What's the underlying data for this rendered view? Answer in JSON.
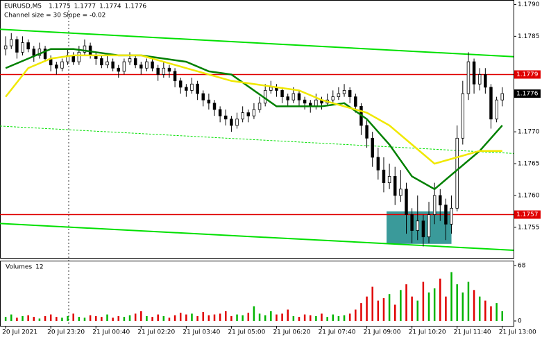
{
  "chart_data": {
    "type": "candlestick",
    "symbol": "EURUSD,M5",
    "subtitle": "Channel size = 30 Slope = -0.02",
    "volume_title": "Volumes",
    "candles": [
      [
        1.1783,
        1.1785,
        1.1782,
        1.17835
      ],
      [
        1.17835,
        1.17855,
        1.1783,
        1.17845
      ],
      [
        1.17845,
        1.1785,
        1.17815,
        1.17825
      ],
      [
        1.17825,
        1.1785,
        1.1782,
        1.1784
      ],
      [
        1.1784,
        1.17845,
        1.17825,
        1.1783
      ],
      [
        1.1783,
        1.17835,
        1.1781,
        1.1782
      ],
      [
        1.1782,
        1.1784,
        1.17815,
        1.1783
      ],
      [
        1.1783,
        1.17835,
        1.1781,
        1.17815
      ],
      [
        1.17815,
        1.1782,
        1.17795,
        1.17805
      ],
      [
        1.17805,
        1.1781,
        1.1779,
        1.178
      ],
      [
        1.178,
        1.17815,
        1.17795,
        1.1781
      ],
      [
        1.1781,
        1.1783,
        1.17805,
        1.1782
      ],
      [
        1.1782,
        1.17825,
        1.17805,
        1.1781
      ],
      [
        1.1781,
        1.17835,
        1.17805,
        1.17825
      ],
      [
        1.17825,
        1.17845,
        1.1782,
        1.17835
      ],
      [
        1.17835,
        1.1784,
        1.17815,
        1.1782
      ],
      [
        1.1782,
        1.17825,
        1.17805,
        1.17815
      ],
      [
        1.17815,
        1.1782,
        1.178,
        1.17805
      ],
      [
        1.17805,
        1.1782,
        1.178,
        1.1781
      ],
      [
        1.1781,
        1.17815,
        1.17795,
        1.178
      ],
      [
        1.178,
        1.17805,
        1.17785,
        1.17795
      ],
      [
        1.17795,
        1.17815,
        1.1779,
        1.1781
      ],
      [
        1.1781,
        1.17825,
        1.17805,
        1.17815
      ],
      [
        1.17815,
        1.1782,
        1.178,
        1.17805
      ],
      [
        1.17805,
        1.1781,
        1.1779,
        1.178
      ],
      [
        1.178,
        1.17815,
        1.17795,
        1.1781
      ],
      [
        1.1781,
        1.17815,
        1.17795,
        1.178
      ],
      [
        1.178,
        1.17805,
        1.1778,
        1.1779
      ],
      [
        1.1779,
        1.1781,
        1.17785,
        1.178
      ],
      [
        1.178,
        1.17805,
        1.17785,
        1.17795
      ],
      [
        1.17795,
        1.178,
        1.1777,
        1.1778
      ],
      [
        1.1778,
        1.17785,
        1.1776,
        1.1777
      ],
      [
        1.1777,
        1.17775,
        1.17755,
        1.17765
      ],
      [
        1.17765,
        1.17785,
        1.1776,
        1.17775
      ],
      [
        1.17775,
        1.1778,
        1.1775,
        1.1776
      ],
      [
        1.1776,
        1.17765,
        1.1774,
        1.1775
      ],
      [
        1.1775,
        1.1776,
        1.17735,
        1.17745
      ],
      [
        1.17745,
        1.1775,
        1.17725,
        1.17735
      ],
      [
        1.17735,
        1.1774,
        1.17715,
        1.17725
      ],
      [
        1.17725,
        1.17735,
        1.1771,
        1.1772
      ],
      [
        1.1772,
        1.17725,
        1.177,
        1.1771
      ],
      [
        1.1771,
        1.1773,
        1.17705,
        1.1772
      ],
      [
        1.1772,
        1.1774,
        1.17715,
        1.1773
      ],
      [
        1.1773,
        1.17735,
        1.17715,
        1.17725
      ],
      [
        1.17725,
        1.17745,
        1.1772,
        1.17735
      ],
      [
        1.17735,
        1.17755,
        1.1773,
        1.17745
      ],
      [
        1.17745,
        1.17775,
        1.1774,
        1.17765
      ],
      [
        1.17765,
        1.1778,
        1.1776,
        1.1777
      ],
      [
        1.1777,
        1.17775,
        1.17755,
        1.17765
      ],
      [
        1.17765,
        1.1777,
        1.17745,
        1.17755
      ],
      [
        1.17755,
        1.1776,
        1.1774,
        1.1775
      ],
      [
        1.1775,
        1.1777,
        1.17745,
        1.1776
      ],
      [
        1.1776,
        1.17765,
        1.1774,
        1.1775
      ],
      [
        1.1775,
        1.17755,
        1.17735,
        1.17745
      ],
      [
        1.17745,
        1.1775,
        1.1773,
        1.1774
      ],
      [
        1.1774,
        1.1776,
        1.17735,
        1.1775
      ],
      [
        1.1775,
        1.17755,
        1.17735,
        1.17745
      ],
      [
        1.17745,
        1.1776,
        1.1774,
        1.1775
      ],
      [
        1.1775,
        1.17765,
        1.17745,
        1.17755
      ],
      [
        1.17755,
        1.1777,
        1.1775,
        1.1776
      ],
      [
        1.1776,
        1.17775,
        1.17755,
        1.17765
      ],
      [
        1.17765,
        1.1777,
        1.17745,
        1.17755
      ],
      [
        1.17755,
        1.1776,
        1.1773,
        1.1774
      ],
      [
        1.1774,
        1.17745,
        1.17695,
        1.1771
      ],
      [
        1.1771,
        1.1772,
        1.17675,
        1.1769
      ],
      [
        1.1769,
        1.177,
        1.17645,
        1.1766
      ],
      [
        1.1766,
        1.17675,
        1.17625,
        1.1764
      ],
      [
        1.1764,
        1.1766,
        1.17605,
        1.1762
      ],
      [
        1.1762,
        1.1765,
        1.1761,
        1.1763
      ],
      [
        1.1763,
        1.17645,
        1.17585,
        1.176
      ],
      [
        1.176,
        1.1764,
        1.1759,
        1.1761
      ],
      [
        1.1761,
        1.1762,
        1.1754,
        1.1757
      ],
      [
        1.1757,
        1.1758,
        1.17525,
        1.17545
      ],
      [
        1.17545,
        1.176,
        1.1753,
        1.1756
      ],
      [
        1.1756,
        1.1757,
        1.1752,
        1.17535
      ],
      [
        1.17535,
        1.1759,
        1.17525,
        1.1757
      ],
      [
        1.1757,
        1.1762,
        1.17555,
        1.176
      ],
      [
        1.176,
        1.1761,
        1.1756,
        1.17585
      ],
      [
        1.17585,
        1.17595,
        1.1753,
        1.17555
      ],
      [
        1.17555,
        1.176,
        1.1754,
        1.1758
      ],
      [
        1.1758,
        1.1771,
        1.17575,
        1.1769
      ],
      [
        1.1769,
        1.1778,
        1.1768,
        1.1776
      ],
      [
        1.1776,
        1.17825,
        1.1775,
        1.1781
      ],
      [
        1.1781,
        1.17815,
        1.1776,
        1.17775
      ],
      [
        1.17775,
        1.178,
        1.17765,
        1.1779
      ],
      [
        1.1779,
        1.178,
        1.1776,
        1.1777
      ],
      [
        1.1777,
        1.17775,
        1.17705,
        1.1772
      ],
      [
        1.1772,
        1.17755,
        1.17715,
        1.1775
      ],
      [
        1.1775,
        1.1777,
        1.1774,
        1.1776
      ]
    ],
    "volumes": [
      5,
      8,
      4,
      6,
      7,
      5,
      3,
      6,
      8,
      5,
      4,
      6,
      9,
      5,
      4,
      7,
      6,
      5,
      8,
      4,
      6,
      5,
      7,
      9,
      12,
      6,
      5,
      8,
      6,
      4,
      7,
      10,
      8,
      9,
      6,
      11,
      7,
      8,
      9,
      12,
      6,
      8,
      7,
      10,
      18,
      9,
      7,
      12,
      8,
      9,
      14,
      6,
      5,
      8,
      7,
      6,
      9,
      5,
      8,
      6,
      7,
      9,
      14,
      22,
      30,
      42,
      25,
      28,
      33,
      20,
      38,
      45,
      30,
      25,
      48,
      35,
      40,
      52,
      30,
      60,
      45,
      35,
      48,
      38,
      30,
      25,
      18,
      22,
      12
    ],
    "up_color": "#00b400",
    "down_color": "#e00000",
    "moving_averages": [
      {
        "color": "#008000",
        "x": [
          0,
          4,
          8,
          12,
          16,
          20,
          24,
          28,
          32,
          36,
          40,
          44,
          48,
          52,
          56,
          60,
          64,
          68,
          72,
          76,
          80,
          84,
          88
        ],
        "values": [
          1.178,
          1.17815,
          1.1783,
          1.1783,
          1.17825,
          1.1782,
          1.1782,
          1.17815,
          1.1781,
          1.17795,
          1.1779,
          1.17765,
          1.1774,
          1.1774,
          1.1774,
          1.17745,
          1.1772,
          1.1768,
          1.1763,
          1.1761,
          1.1764,
          1.1767,
          1.1771
        ]
      },
      {
        "color": "#f0e800",
        "x": [
          0,
          4,
          8,
          12,
          16,
          20,
          24,
          28,
          32,
          36,
          40,
          44,
          48,
          52,
          56,
          60,
          64,
          68,
          72,
          76,
          80,
          84,
          88
        ],
        "values": [
          1.17755,
          1.178,
          1.17815,
          1.1782,
          1.1782,
          1.1782,
          1.1782,
          1.1781,
          1.178,
          1.1779,
          1.1778,
          1.17775,
          1.1777,
          1.17765,
          1.1775,
          1.1774,
          1.1773,
          1.1771,
          1.1768,
          1.1765,
          1.1766,
          1.1767,
          1.1767
        ]
      }
    ],
    "channel": {
      "color": "#00e000",
      "x": [
        -1,
        90
      ],
      "upper": [
        1.17861,
        1.17818
      ],
      "middle": [
        1.17709,
        1.17666
      ],
      "lower": [
        1.17556,
        1.17514
      ]
    },
    "levels": [
      {
        "value": 1.1779,
        "color": "#e00000"
      },
      {
        "value": 1.1757,
        "color": "#e00000"
      }
    ],
    "zone": {
      "x": [
        67.5,
        79
      ],
      "y": [
        1.17524,
        1.17575
      ],
      "color": "#3a9a9a"
    },
    "xlim": [
      -1,
      90
    ],
    "xticks": [
      {
        "value": 0,
        "label": "20 Jul 2021"
      },
      {
        "value": 8,
        "label": "20 Jul 23:20"
      },
      {
        "value": 16,
        "label": "21 Jul 00:40"
      },
      {
        "value": 24,
        "label": "21 Jul 02:20"
      },
      {
        "value": 32,
        "label": "21 Jul 03:40"
      },
      {
        "value": 40,
        "label": "21 Jul 05:00"
      },
      {
        "value": 48,
        "label": "21 Jul 06:20"
      },
      {
        "value": 56,
        "label": "21 Jul 07:40"
      },
      {
        "value": 64,
        "label": "21 Jul 09:00"
      },
      {
        "value": 72,
        "label": "21 Jul 10:20"
      },
      {
        "value": 80,
        "label": "21 Jul 11:40"
      },
      {
        "value": 88,
        "label": "21 Jul 13:00"
      }
    ],
    "ylim": [
      1.17502,
      1.17907
    ],
    "yticks": [
      1.1755,
      {
        "value": 1.176,
        "label": "1.1760"
      },
      1.1765,
      {
        "value": 1.177,
        "label": "1.1770"
      },
      1.1785,
      {
        "value": 1.179,
        "label": "1.1790"
      }
    ],
    "vlim": [
      0,
      74
    ],
    "vticks": [
      0,
      68
    ]
  }
}
